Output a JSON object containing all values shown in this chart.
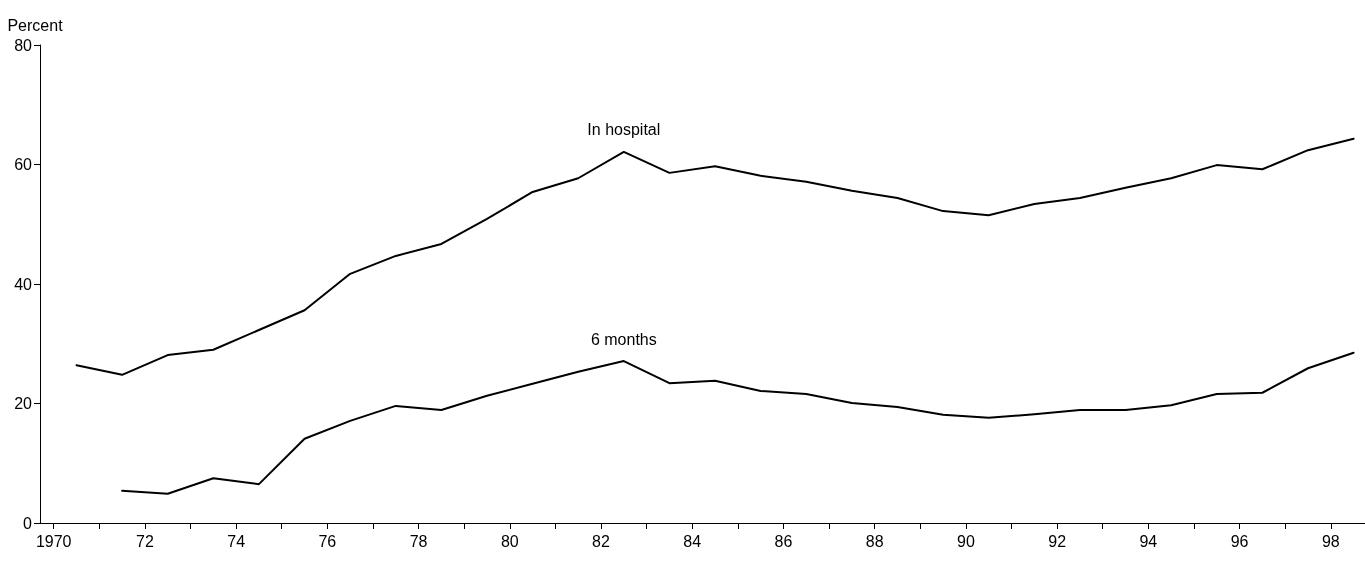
{
  "chart_data": {
    "type": "line",
    "ylabel": "Percent",
    "xlim": [
      1969.7,
      1998.75
    ],
    "xticks": [
      {
        "value": 1970,
        "label": "1970"
      },
      {
        "value": 1971,
        "label": null
      },
      {
        "value": 1972,
        "label": "72"
      },
      {
        "value": 1973,
        "label": null
      },
      {
        "value": 1974,
        "label": "74"
      },
      {
        "value": 1975,
        "label": null
      },
      {
        "value": 1976,
        "label": "76"
      },
      {
        "value": 1977,
        "label": null
      },
      {
        "value": 1978,
        "label": "78"
      },
      {
        "value": 1979,
        "label": null
      },
      {
        "value": 1980,
        "label": "80"
      },
      {
        "value": 1981,
        "label": null
      },
      {
        "value": 1982,
        "label": "82"
      },
      {
        "value": 1983,
        "label": null
      },
      {
        "value": 1984,
        "label": "84"
      },
      {
        "value": 1985,
        "label": null
      },
      {
        "value": 1986,
        "label": "86"
      },
      {
        "value": 1987,
        "label": null
      },
      {
        "value": 1988,
        "label": "88"
      },
      {
        "value": 1989,
        "label": null
      },
      {
        "value": 1990,
        "label": "90"
      },
      {
        "value": 1991,
        "label": null
      },
      {
        "value": 1992,
        "label": "92"
      },
      {
        "value": 1993,
        "label": null
      },
      {
        "value": 1994,
        "label": "94"
      },
      {
        "value": 1995,
        "label": null
      },
      {
        "value": 1996,
        "label": "96"
      },
      {
        "value": 1997,
        "label": null
      },
      {
        "value": 1998,
        "label": "98"
      }
    ],
    "ylim": [
      0,
      80
    ],
    "yticks": [
      0,
      20,
      40,
      60,
      80
    ],
    "grid": false,
    "legend": false,
    "marker": "none",
    "line_style": "solid",
    "series": [
      {
        "name": "In hospital",
        "color": "#000000",
        "x": [
          1970.5,
          1971.5,
          1972.5,
          1973.5,
          1974.5,
          1975.5,
          1976.5,
          1977.5,
          1978.5,
          1979.5,
          1980.5,
          1981.5,
          1982.5,
          1983.5,
          1984.5,
          1985.5,
          1986.5,
          1987.5,
          1988.5,
          1989.5,
          1990.5,
          1991.5,
          1992.5,
          1993.5,
          1994.5,
          1995.5,
          1996.5,
          1997.5,
          1998.5
        ],
        "values": [
          26.4,
          24.8,
          28.1,
          29.0,
          32.3,
          35.6,
          41.7,
          44.7,
          46.7,
          50.9,
          55.4,
          57.7,
          62.1,
          58.6,
          59.7,
          58.1,
          57.1,
          55.6,
          54.4,
          52.2,
          51.5,
          53.4,
          54.4,
          56.1,
          57.7,
          59.9,
          59.2,
          62.4,
          64.3
        ]
      },
      {
        "name": "6 months",
        "color": "#000000",
        "x": [
          1971.5,
          1972.5,
          1973.5,
          1974.5,
          1975.5,
          1976.5,
          1977.5,
          1978.5,
          1979.5,
          1980.5,
          1981.5,
          1982.5,
          1983.5,
          1984.5,
          1985.5,
          1986.5,
          1987.5,
          1988.5,
          1989.5,
          1990.5,
          1991.5,
          1992.5,
          1993.5,
          1994.5,
          1995.5,
          1996.5,
          1997.5,
          1998.5
        ],
        "values": [
          5.4,
          4.9,
          7.5,
          6.5,
          14.1,
          17.1,
          19.6,
          18.9,
          21.3,
          23.3,
          25.3,
          27.1,
          23.4,
          23.8,
          22.1,
          21.6,
          20.1,
          19.4,
          18.1,
          17.6,
          18.2,
          18.9,
          18.9,
          19.7,
          21.6,
          21.8,
          25.9,
          28.5
        ]
      }
    ]
  }
}
